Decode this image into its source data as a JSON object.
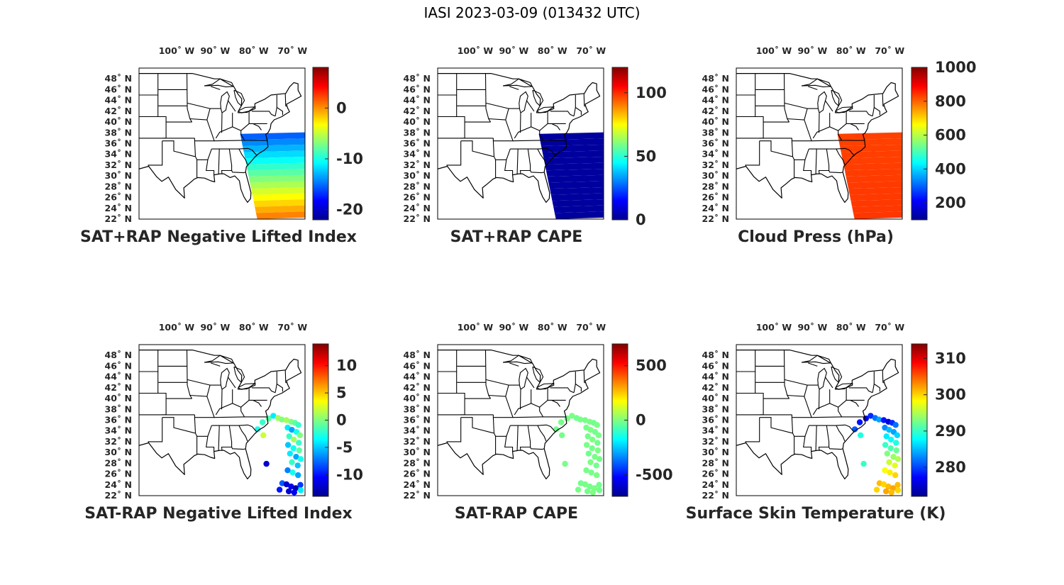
{
  "figure": {
    "title": "IASI 2023-03-09 (013432 UTC)"
  },
  "map_extent": {
    "lon_min": -109,
    "lon_max": -66,
    "lat_min": 22,
    "lat_max": 50
  },
  "lon_ticks": [
    {
      "lon": -100,
      "label": "100˚ W"
    },
    {
      "lon": -90,
      "label": "90˚ W"
    },
    {
      "lon": -80,
      "label": "80˚ W"
    },
    {
      "lon": -70,
      "label": "70˚ W"
    }
  ],
  "lat_ticks": [
    {
      "lat": 48,
      "label": "48˚ N"
    },
    {
      "lat": 46,
      "label": "46˚ N"
    },
    {
      "lat": 44,
      "label": "44˚ N"
    },
    {
      "lat": 42,
      "label": "42˚ N"
    },
    {
      "lat": 40,
      "label": "40˚ N"
    },
    {
      "lat": 38,
      "label": "38˚ N"
    },
    {
      "lat": 36,
      "label": "36˚ N"
    },
    {
      "lat": 34,
      "label": "34˚ N"
    },
    {
      "lat": 32,
      "label": "32˚ N"
    },
    {
      "lat": 30,
      "label": "30˚ N"
    },
    {
      "lat": 28,
      "label": "28˚ N"
    },
    {
      "lat": 26,
      "label": "26˚ N"
    },
    {
      "lat": 24,
      "label": "24˚ N"
    },
    {
      "lat": 22,
      "label": "22˚ N"
    }
  ],
  "colormap": "jet",
  "colors": {
    "jet_stops": [
      "#00008f",
      "#0000ff",
      "#00ffff",
      "#ffff00",
      "#ff0000",
      "#800000"
    ]
  },
  "panels": [
    {
      "id": "sat-rap-nli",
      "title": "SAT+RAP Negative Lifted Index",
      "layer": "swath",
      "clim": [
        -22,
        8
      ],
      "ticks": [
        {
          "value": 0,
          "label": "0"
        },
        {
          "value": -10,
          "label": "-10"
        },
        {
          "value": -20,
          "label": "-20"
        }
      ],
      "swath_values": {
        "north": -16,
        "south": 1
      }
    },
    {
      "id": "sat-rap-cape",
      "title": "SAT+RAP CAPE",
      "layer": "swath",
      "clim": [
        0,
        120
      ],
      "ticks": [
        {
          "value": 100,
          "label": "100"
        },
        {
          "value": 50,
          "label": "50"
        },
        {
          "value": 0,
          "label": "0"
        }
      ],
      "swath_values": {
        "north": 2,
        "south": 2
      }
    },
    {
      "id": "cloud-press",
      "title": "Cloud Press (hPa)",
      "layer": "swath",
      "clim": [
        100,
        1000
      ],
      "ticks": [
        {
          "value": 1000,
          "label": "1000"
        },
        {
          "value": 800,
          "label": "800"
        },
        {
          "value": 600,
          "label": "600"
        },
        {
          "value": 400,
          "label": "400"
        },
        {
          "value": 200,
          "label": "200"
        }
      ],
      "swath_values": {
        "north": 830,
        "south": 840
      }
    },
    {
      "id": "sat-minus-rap-nli",
      "title": "SAT-RAP Negative Lifted Index",
      "layer": "points",
      "clim": [
        -14,
        14
      ],
      "ticks": [
        {
          "value": 10,
          "label": "10"
        },
        {
          "value": 5,
          "label": "5"
        },
        {
          "value": 0,
          "label": "0"
        },
        {
          "value": -5,
          "label": "-5"
        },
        {
          "value": -10,
          "label": "-10"
        }
      ],
      "points": [
        {
          "lon": -78.3,
          "lat": 34.3,
          "v": -3
        },
        {
          "lon": -77.0,
          "lat": 35.6,
          "v": -2
        },
        {
          "lon": -75.4,
          "lat": 36.3,
          "v": -1
        },
        {
          "lon": -74.2,
          "lat": 36.8,
          "v": -4
        },
        {
          "lon": -73.0,
          "lat": 36.4,
          "v": 1
        },
        {
          "lon": -72.0,
          "lat": 36.1,
          "v": 0
        },
        {
          "lon": -70.8,
          "lat": 36.0,
          "v": 1
        },
        {
          "lon": -69.6,
          "lat": 35.7,
          "v": 0
        },
        {
          "lon": -68.6,
          "lat": 35.5,
          "v": -1
        },
        {
          "lon": -67.7,
          "lat": 35.1,
          "v": -2
        },
        {
          "lon": -70.5,
          "lat": 34.6,
          "v": -4
        },
        {
          "lon": -69.4,
          "lat": 34.2,
          "v": -6
        },
        {
          "lon": -68.2,
          "lat": 33.8,
          "v": -3
        },
        {
          "lon": -67.3,
          "lat": 33.2,
          "v": 0
        },
        {
          "lon": -70.1,
          "lat": 33.0,
          "v": -2
        },
        {
          "lon": -68.9,
          "lat": 32.4,
          "v": 1
        },
        {
          "lon": -67.6,
          "lat": 31.8,
          "v": -2
        },
        {
          "lon": -70.4,
          "lat": 31.4,
          "v": -5
        },
        {
          "lon": -69.0,
          "lat": 30.8,
          "v": -3
        },
        {
          "lon": -67.5,
          "lat": 30.4,
          "v": -1
        },
        {
          "lon": -69.9,
          "lat": 29.8,
          "v": -4
        },
        {
          "lon": -68.3,
          "lat": 29.2,
          "v": -6
        },
        {
          "lon": -67.1,
          "lat": 28.8,
          "v": -3
        },
        {
          "lon": -69.4,
          "lat": 28.2,
          "v": -2
        },
        {
          "lon": -67.9,
          "lat": 27.6,
          "v": -5
        },
        {
          "lon": -70.5,
          "lat": 26.7,
          "v": -7
        },
        {
          "lon": -69.2,
          "lat": 26.3,
          "v": -3
        },
        {
          "lon": -67.8,
          "lat": 25.8,
          "v": -6
        },
        {
          "lon": -71.9,
          "lat": 24.3,
          "v": -8
        },
        {
          "lon": -70.8,
          "lat": 24.1,
          "v": -12
        },
        {
          "lon": -69.6,
          "lat": 23.7,
          "v": -11
        },
        {
          "lon": -68.4,
          "lat": 23.4,
          "v": -13
        },
        {
          "lon": -67.2,
          "lat": 24.0,
          "v": -9
        },
        {
          "lon": -72.6,
          "lat": 23.1,
          "v": -10
        },
        {
          "lon": -70.2,
          "lat": 22.8,
          "v": -12
        },
        {
          "lon": -68.8,
          "lat": 22.6,
          "v": -11
        },
        {
          "lon": -67.1,
          "lat": 23.0,
          "v": -4
        },
        {
          "lon": -76.0,
          "lat": 27.9,
          "v": -12
        },
        {
          "lon": -76.8,
          "lat": 33.2,
          "v": 2
        }
      ]
    },
    {
      "id": "sat-minus-rap-cape",
      "title": "SAT-RAP CAPE",
      "layer": "points",
      "clim": [
        -700,
        700
      ],
      "ticks": [
        {
          "value": 500,
          "label": "500"
        },
        {
          "value": 0,
          "label": "0"
        },
        {
          "value": -500,
          "label": "-500"
        }
      ],
      "points": [
        {
          "lon": -78.3,
          "lat": 34.3,
          "v": -20
        },
        {
          "lon": -77.0,
          "lat": 35.6,
          "v": -10
        },
        {
          "lon": -75.4,
          "lat": 36.3,
          "v": -15
        },
        {
          "lon": -74.2,
          "lat": 36.8,
          "v": -5
        },
        {
          "lon": -73.0,
          "lat": 36.4,
          "v": -20
        },
        {
          "lon": -72.0,
          "lat": 36.1,
          "v": -10
        },
        {
          "lon": -70.8,
          "lat": 36.0,
          "v": -15
        },
        {
          "lon": -69.6,
          "lat": 35.7,
          "v": -5
        },
        {
          "lon": -68.6,
          "lat": 35.5,
          "v": -20
        },
        {
          "lon": -67.7,
          "lat": 35.1,
          "v": -10
        },
        {
          "lon": -70.5,
          "lat": 34.6,
          "v": -15
        },
        {
          "lon": -69.4,
          "lat": 34.2,
          "v": -5
        },
        {
          "lon": -68.2,
          "lat": 33.8,
          "v": -20
        },
        {
          "lon": -67.3,
          "lat": 33.2,
          "v": -10
        },
        {
          "lon": -70.1,
          "lat": 33.0,
          "v": -15
        },
        {
          "lon": -68.9,
          "lat": 32.4,
          "v": -5
        },
        {
          "lon": -67.6,
          "lat": 31.8,
          "v": -20
        },
        {
          "lon": -70.4,
          "lat": 31.4,
          "v": -10
        },
        {
          "lon": -69.0,
          "lat": 30.8,
          "v": -15
        },
        {
          "lon": -67.5,
          "lat": 30.4,
          "v": -5
        },
        {
          "lon": -69.9,
          "lat": 29.8,
          "v": -20
        },
        {
          "lon": -68.3,
          "lat": 29.2,
          "v": -10
        },
        {
          "lon": -67.1,
          "lat": 28.8,
          "v": -15
        },
        {
          "lon": -69.4,
          "lat": 28.2,
          "v": -5
        },
        {
          "lon": -67.9,
          "lat": 27.6,
          "v": -20
        },
        {
          "lon": -70.5,
          "lat": 26.7,
          "v": -10
        },
        {
          "lon": -69.2,
          "lat": 26.3,
          "v": -15
        },
        {
          "lon": -67.8,
          "lat": 25.8,
          "v": -5
        },
        {
          "lon": -71.9,
          "lat": 24.3,
          "v": -20
        },
        {
          "lon": -70.8,
          "lat": 24.1,
          "v": -10
        },
        {
          "lon": -69.6,
          "lat": 23.7,
          "v": -15
        },
        {
          "lon": -68.4,
          "lat": 23.4,
          "v": -5
        },
        {
          "lon": -67.2,
          "lat": 24.0,
          "v": -20
        },
        {
          "lon": -72.6,
          "lat": 23.1,
          "v": -10
        },
        {
          "lon": -70.2,
          "lat": 22.8,
          "v": -15
        },
        {
          "lon": -68.8,
          "lat": 22.6,
          "v": -5
        },
        {
          "lon": -67.1,
          "lat": 23.0,
          "v": -20
        },
        {
          "lon": -76.0,
          "lat": 27.9,
          "v": -10
        },
        {
          "lon": -76.8,
          "lat": 33.2,
          "v": -15
        }
      ]
    },
    {
      "id": "surface-skin-temp",
      "title": "Surface Skin Temperature (K)",
      "layer": "points",
      "clim": [
        272,
        314
      ],
      "ticks": [
        {
          "value": 310,
          "label": "310"
        },
        {
          "value": 300,
          "label": "300"
        },
        {
          "value": 290,
          "label": "290"
        },
        {
          "value": 280,
          "label": "280"
        }
      ],
      "points": [
        {
          "lon": -78.3,
          "lat": 34.3,
          "v": 281
        },
        {
          "lon": -77.0,
          "lat": 35.6,
          "v": 278
        },
        {
          "lon": -75.4,
          "lat": 36.3,
          "v": 276
        },
        {
          "lon": -74.2,
          "lat": 36.8,
          "v": 279
        },
        {
          "lon": -73.0,
          "lat": 36.4,
          "v": 282
        },
        {
          "lon": -72.0,
          "lat": 36.1,
          "v": 284
        },
        {
          "lon": -70.8,
          "lat": 36.0,
          "v": 278
        },
        {
          "lon": -69.6,
          "lat": 35.7,
          "v": 276
        },
        {
          "lon": -68.6,
          "lat": 35.5,
          "v": 279
        },
        {
          "lon": -67.7,
          "lat": 35.1,
          "v": 282
        },
        {
          "lon": -70.5,
          "lat": 34.6,
          "v": 283
        },
        {
          "lon": -69.4,
          "lat": 34.2,
          "v": 285
        },
        {
          "lon": -68.2,
          "lat": 33.8,
          "v": 284
        },
        {
          "lon": -67.3,
          "lat": 33.2,
          "v": 286
        },
        {
          "lon": -70.1,
          "lat": 33.0,
          "v": 287
        },
        {
          "lon": -68.9,
          "lat": 32.4,
          "v": 288
        },
        {
          "lon": -67.6,
          "lat": 31.8,
          "v": 289
        },
        {
          "lon": -70.4,
          "lat": 31.4,
          "v": 290
        },
        {
          "lon": -69.0,
          "lat": 30.8,
          "v": 291
        },
        {
          "lon": -67.5,
          "lat": 30.4,
          "v": 292
        },
        {
          "lon": -69.9,
          "lat": 29.8,
          "v": 293
        },
        {
          "lon": -68.3,
          "lat": 29.2,
          "v": 294
        },
        {
          "lon": -67.1,
          "lat": 28.8,
          "v": 295
        },
        {
          "lon": -69.4,
          "lat": 28.2,
          "v": 296
        },
        {
          "lon": -67.9,
          "lat": 27.6,
          "v": 297
        },
        {
          "lon": -70.5,
          "lat": 26.7,
          "v": 298
        },
        {
          "lon": -69.2,
          "lat": 26.3,
          "v": 299
        },
        {
          "lon": -67.8,
          "lat": 25.8,
          "v": 300
        },
        {
          "lon": -71.9,
          "lat": 24.3,
          "v": 301
        },
        {
          "lon": -70.8,
          "lat": 24.1,
          "v": 300
        },
        {
          "lon": -69.6,
          "lat": 23.7,
          "v": 301
        },
        {
          "lon": -68.4,
          "lat": 23.4,
          "v": 302
        },
        {
          "lon": -67.2,
          "lat": 24.0,
          "v": 301
        },
        {
          "lon": -72.6,
          "lat": 23.1,
          "v": 300
        },
        {
          "lon": -70.2,
          "lat": 22.8,
          "v": 302
        },
        {
          "lon": -68.8,
          "lat": 22.6,
          "v": 301
        },
        {
          "lon": -67.1,
          "lat": 23.0,
          "v": 300
        },
        {
          "lon": -76.0,
          "lat": 27.9,
          "v": 290
        },
        {
          "lon": -76.8,
          "lat": 33.2,
          "v": 289
        }
      ]
    }
  ]
}
